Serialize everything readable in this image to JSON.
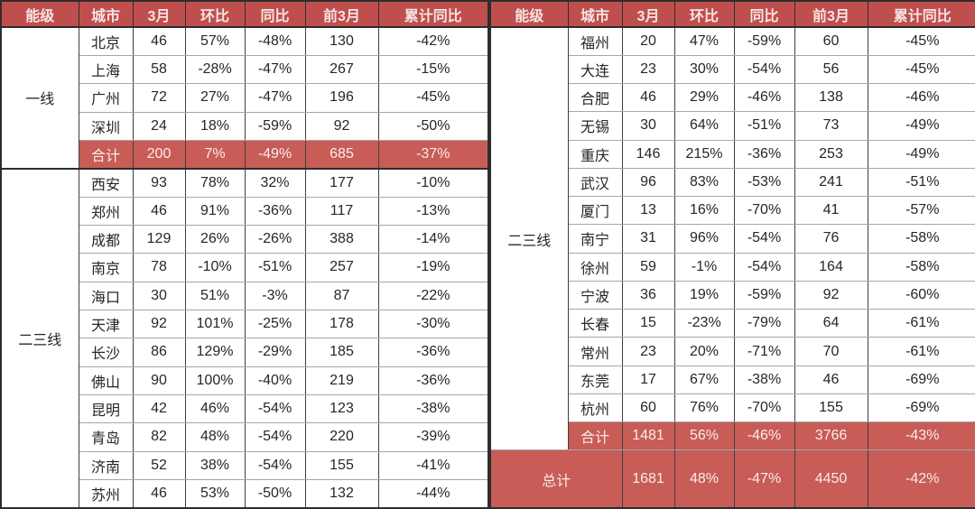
{
  "colors": {
    "header_bg": "#bf4f4d",
    "header_text": "#f6e4e3",
    "total_bg": "#c85c57",
    "total_text": "#f8edec",
    "body_text": "#262626",
    "row_border": "#a6a6a6",
    "col_border": "#3f3f3f",
    "group_border": "#2d2d2d"
  },
  "chart_data": {
    "type": "table",
    "columns": [
      "能级",
      "城市",
      "3月",
      "环比",
      "同比",
      "前3月",
      "累计同比"
    ],
    "left_table": {
      "groups": [
        {
          "tier": "一线",
          "rows": [
            {
              "city": "北京",
              "values": [
                "46",
                "57%",
                "-48%",
                "130",
                "-42%"
              ],
              "highlight": false
            },
            {
              "city": "上海",
              "values": [
                "58",
                "-28%",
                "-47%",
                "267",
                "-15%"
              ],
              "highlight": false
            },
            {
              "city": "广州",
              "values": [
                "72",
                "27%",
                "-47%",
                "196",
                "-45%"
              ],
              "highlight": false
            },
            {
              "city": "深圳",
              "values": [
                "24",
                "18%",
                "-59%",
                "92",
                "-50%"
              ],
              "highlight": false
            },
            {
              "city": "合计",
              "values": [
                "200",
                "7%",
                "-49%",
                "685",
                "-37%"
              ],
              "highlight": true
            }
          ]
        },
        {
          "tier": "二三线",
          "rows": [
            {
              "city": "西安",
              "values": [
                "93",
                "78%",
                "32%",
                "177",
                "-10%"
              ],
              "highlight": false
            },
            {
              "city": "郑州",
              "values": [
                "46",
                "91%",
                "-36%",
                "117",
                "-13%"
              ],
              "highlight": false
            },
            {
              "city": "成都",
              "values": [
                "129",
                "26%",
                "-26%",
                "388",
                "-14%"
              ],
              "highlight": false
            },
            {
              "city": "南京",
              "values": [
                "78",
                "-10%",
                "-51%",
                "257",
                "-19%"
              ],
              "highlight": false
            },
            {
              "city": "海口",
              "values": [
                "30",
                "51%",
                "-3%",
                "87",
                "-22%"
              ],
              "highlight": false
            },
            {
              "city": "天津",
              "values": [
                "92",
                "101%",
                "-25%",
                "178",
                "-30%"
              ],
              "highlight": false
            },
            {
              "city": "长沙",
              "values": [
                "86",
                "129%",
                "-29%",
                "185",
                "-36%"
              ],
              "highlight": false
            },
            {
              "city": "佛山",
              "values": [
                "90",
                "100%",
                "-40%",
                "219",
                "-36%"
              ],
              "highlight": false
            },
            {
              "city": "昆明",
              "values": [
                "42",
                "46%",
                "-54%",
                "123",
                "-38%"
              ],
              "highlight": false
            },
            {
              "city": "青岛",
              "values": [
                "82",
                "48%",
                "-54%",
                "220",
                "-39%"
              ],
              "highlight": false
            },
            {
              "city": "济南",
              "values": [
                "52",
                "38%",
                "-54%",
                "155",
                "-41%"
              ],
              "highlight": false
            },
            {
              "city": "苏州",
              "values": [
                "46",
                "53%",
                "-50%",
                "132",
                "-44%"
              ],
              "highlight": false
            }
          ]
        }
      ]
    },
    "right_table": {
      "groups": [
        {
          "tier": "二三线",
          "rows": [
            {
              "city": "福州",
              "values": [
                "20",
                "47%",
                "-59%",
                "60",
                "-45%"
              ],
              "highlight": false
            },
            {
              "city": "大连",
              "values": [
                "23",
                "30%",
                "-54%",
                "56",
                "-45%"
              ],
              "highlight": false
            },
            {
              "city": "合肥",
              "values": [
                "46",
                "29%",
                "-46%",
                "138",
                "-46%"
              ],
              "highlight": false
            },
            {
              "city": "无锡",
              "values": [
                "30",
                "64%",
                "-51%",
                "73",
                "-49%"
              ],
              "highlight": false
            },
            {
              "city": "重庆",
              "values": [
                "146",
                "215%",
                "-36%",
                "253",
                "-49%"
              ],
              "highlight": false
            },
            {
              "city": "武汉",
              "values": [
                "96",
                "83%",
                "-53%",
                "241",
                "-51%"
              ],
              "highlight": false
            },
            {
              "city": "厦门",
              "values": [
                "13",
                "16%",
                "-70%",
                "41",
                "-57%"
              ],
              "highlight": false
            },
            {
              "city": "南宁",
              "values": [
                "31",
                "96%",
                "-54%",
                "76",
                "-58%"
              ],
              "highlight": false
            },
            {
              "city": "徐州",
              "values": [
                "59",
                "-1%",
                "-54%",
                "164",
                "-58%"
              ],
              "highlight": false
            },
            {
              "city": "宁波",
              "values": [
                "36",
                "19%",
                "-59%",
                "92",
                "-60%"
              ],
              "highlight": false
            },
            {
              "city": "长春",
              "values": [
                "15",
                "-23%",
                "-79%",
                "64",
                "-61%"
              ],
              "highlight": false
            },
            {
              "city": "常州",
              "values": [
                "23",
                "20%",
                "-71%",
                "70",
                "-61%"
              ],
              "highlight": false
            },
            {
              "city": "东莞",
              "values": [
                "17",
                "67%",
                "-38%",
                "46",
                "-69%"
              ],
              "highlight": false
            },
            {
              "city": "杭州",
              "values": [
                "60",
                "76%",
                "-70%",
                "155",
                "-69%"
              ],
              "highlight": false
            },
            {
              "city": "合计",
              "values": [
                "1481",
                "56%",
                "-46%",
                "3766",
                "-43%"
              ],
              "highlight": true
            }
          ]
        }
      ],
      "grand_total": {
        "label": "总计",
        "values": [
          "1681",
          "48%",
          "-47%",
          "4450",
          "-42%"
        ]
      }
    }
  }
}
